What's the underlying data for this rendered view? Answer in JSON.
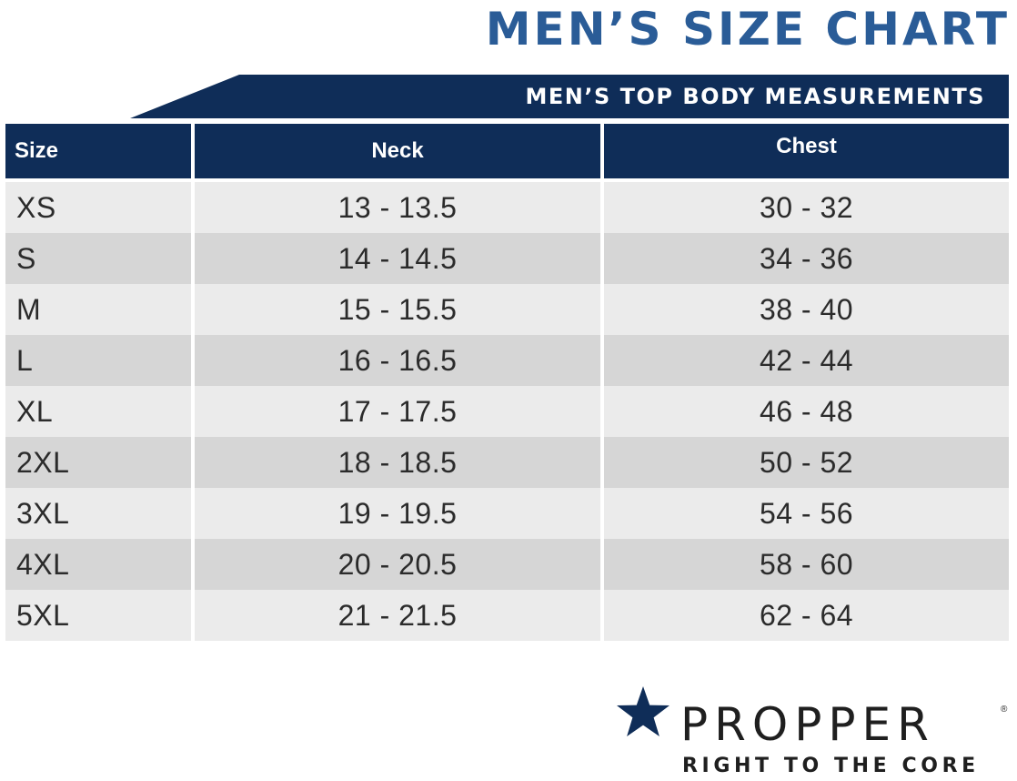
{
  "title": "MEN’S SIZE CHART",
  "subtitle": "MEN’S TOP BODY MEASUREMENTS",
  "colors": {
    "title": "#2a5c97",
    "navy": "#0f2d58",
    "row_light": "#ebebeb",
    "row_dark": "#d6d6d6"
  },
  "table": {
    "headers": [
      "Size",
      "Neck",
      "Chest"
    ],
    "rows": [
      [
        "XS",
        "13 - 13.5",
        "30 - 32"
      ],
      [
        "S",
        "14 - 14.5",
        "34 - 36"
      ],
      [
        "M",
        "15 - 15.5",
        "38 - 40"
      ],
      [
        "L",
        "16 - 16.5",
        "42 - 44"
      ],
      [
        "XL",
        "17 - 17.5",
        "46 - 48"
      ],
      [
        "2XL",
        "18 - 18.5",
        "50 - 52"
      ],
      [
        "3XL",
        "19 - 19.5",
        "54 - 56"
      ],
      [
        "4XL",
        "20 - 20.5",
        "58 - 60"
      ],
      [
        "5XL",
        "21 - 21.5",
        "62 - 64"
      ]
    ]
  },
  "logo": {
    "icon": "star-icon",
    "brand": "PROPPER",
    "registered": "®",
    "tagline": "RIGHT TO THE CORE"
  }
}
